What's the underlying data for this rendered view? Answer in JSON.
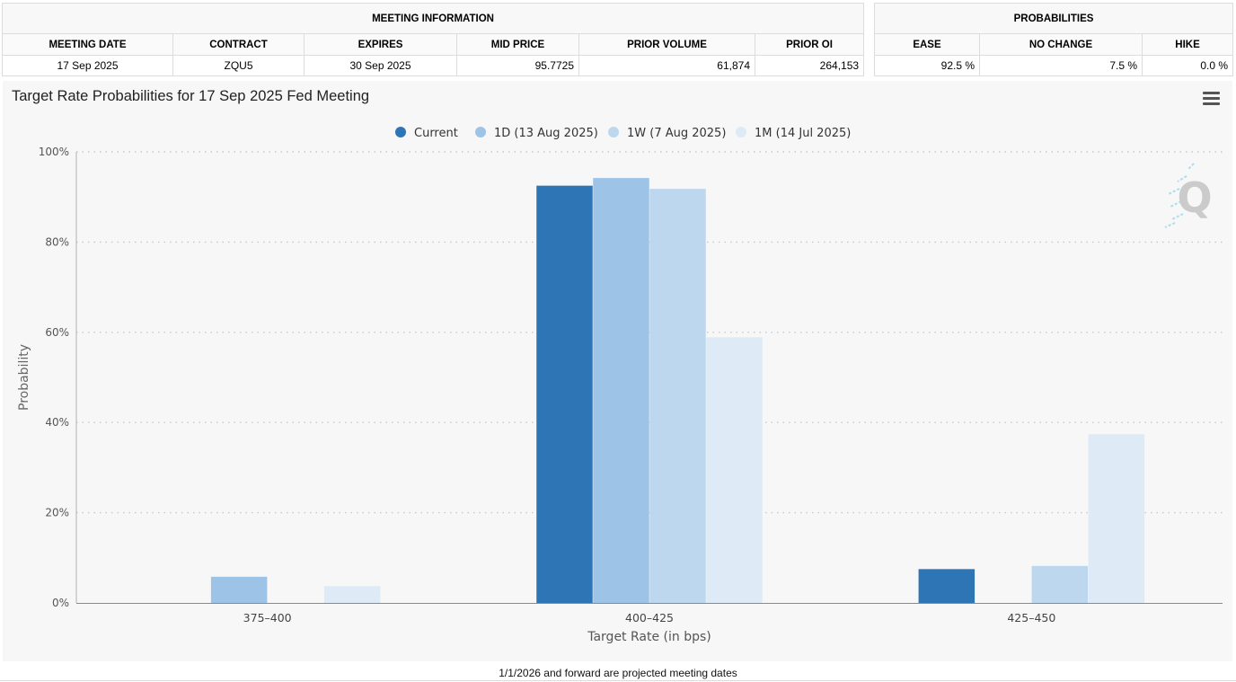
{
  "meeting_info": {
    "group_header": "MEETING INFORMATION",
    "columns": [
      "MEETING DATE",
      "CONTRACT",
      "EXPIRES",
      "MID PRICE",
      "PRIOR VOLUME",
      "PRIOR OI"
    ],
    "row": [
      "17 Sep 2025",
      "ZQU5",
      "30 Sep 2025",
      "95.7725",
      "61,874",
      "264,153"
    ]
  },
  "probabilities": {
    "group_header": "PROBABILITIES",
    "columns": [
      "EASE",
      "NO CHANGE",
      "HIKE"
    ],
    "row": [
      "92.5 %",
      "7.5 %",
      "0.0 %"
    ]
  },
  "chart_data": {
    "type": "bar",
    "title": "Target Rate Probabilities for 17 Sep 2025 Fed Meeting",
    "xlabel": "Target Rate (in bps)",
    "ylabel": "Probability",
    "ylim": [
      0,
      100
    ],
    "yticks": [
      0,
      20,
      40,
      60,
      80,
      100
    ],
    "ytick_labels": [
      "0%",
      "20%",
      "40%",
      "60%",
      "80%",
      "100%"
    ],
    "categories": [
      "375-400",
      "400-425",
      "425-450"
    ],
    "grid": true,
    "legend_position": "top-center",
    "series": [
      {
        "name": "Current",
        "color": "#2e75b6",
        "values": [
          0,
          92.5,
          7.5
        ]
      },
      {
        "name": "1D (13 Aug 2025)",
        "color": "#9dc3e6",
        "values": [
          5.8,
          94.2,
          0
        ]
      },
      {
        "name": "1W (7 Aug 2025)",
        "color": "#bdd7ee",
        "values": [
          0,
          91.8,
          8.2
        ]
      },
      {
        "name": "1M (14 Jul 2025)",
        "color": "#deebf7",
        "values": [
          3.7,
          58.9,
          37.4
        ]
      }
    ]
  },
  "footnote": "1/1/2026 and forward are projected meeting dates"
}
